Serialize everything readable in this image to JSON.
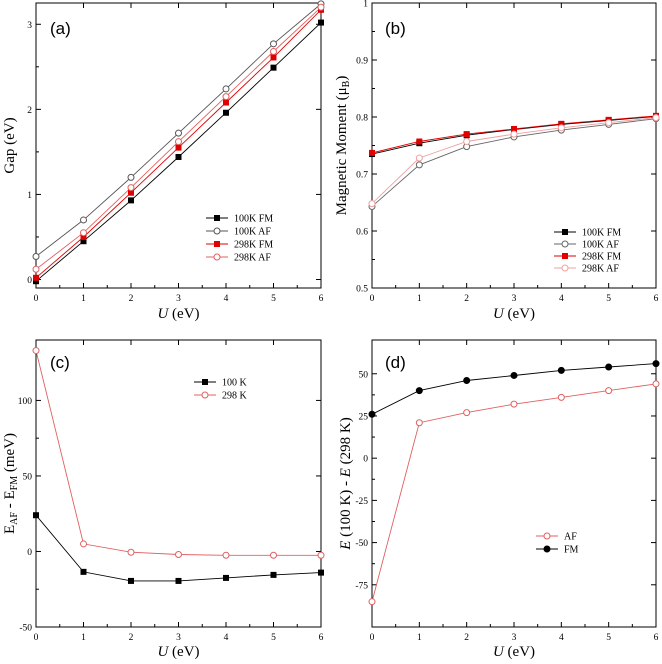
{
  "chart_data": [
    {
      "type": "line",
      "panel_label": "(a)",
      "xlabel_italic": "U",
      "xlabel_rest": " (eV)",
      "ylabel": "Gap (eV)",
      "ylabel_sub": "",
      "ylabel_suffix": "",
      "xlim": [
        0,
        6
      ],
      "ylim": [
        -0.1,
        3.25
      ],
      "xticks": [
        0,
        1,
        2,
        3,
        4,
        5,
        6
      ],
      "yticks": [
        0,
        1,
        2,
        3
      ],
      "x": [
        0,
        1,
        2,
        3,
        4,
        5,
        6
      ],
      "legend_position": "lower-right",
      "series": [
        {
          "name": "100K FM",
          "values": [
            -0.02,
            0.45,
            0.93,
            1.44,
            1.96,
            2.49,
            3.02
          ],
          "color": "#000000",
          "marker": "square-filled"
        },
        {
          "name": "100K AF",
          "values": [
            0.27,
            0.7,
            1.2,
            1.72,
            2.24,
            2.77,
            3.24
          ],
          "color": "#555555",
          "marker": "circle-open"
        },
        {
          "name": "298K FM",
          "values": [
            0.02,
            0.5,
            1.02,
            1.55,
            2.08,
            2.61,
            3.17
          ],
          "color": "#e00000",
          "marker": "square-filled"
        },
        {
          "name": "298K AF",
          "values": [
            0.12,
            0.55,
            1.08,
            1.62,
            2.15,
            2.68,
            3.2
          ],
          "color": "#e06060",
          "marker": "circle-open"
        }
      ]
    },
    {
      "type": "line",
      "panel_label": "(b)",
      "xlabel_italic": "U",
      "xlabel_rest": " (eV)",
      "ylabel": "Magnetic Moment (μ",
      "ylabel_sub": "B",
      "ylabel_suffix": ")",
      "xlim": [
        0,
        6
      ],
      "ylim": [
        0.5,
        1.0
      ],
      "xticks": [
        0,
        1,
        2,
        3,
        4,
        5,
        6
      ],
      "xtick_labels": [
        "0",
        "1",
        "2",
        "3",
        "4",
        "5",
        "6"
      ],
      "yticks": [
        0.5,
        0.6,
        0.7,
        0.8,
        0.9,
        1.0
      ],
      "ytick_labels": [
        "0.5",
        "0.6",
        "0.7",
        "0.8",
        "0.9",
        "1"
      ],
      "x": [
        0,
        1,
        2,
        3,
        4,
        5,
        6
      ],
      "legend_position": "lower-right",
      "series": [
        {
          "name": "100K FM",
          "values": [
            0.735,
            0.754,
            0.768,
            0.778,
            0.787,
            0.794,
            0.801
          ],
          "color": "#000000",
          "marker": "square-filled"
        },
        {
          "name": "100K AF",
          "values": [
            0.643,
            0.716,
            0.748,
            0.765,
            0.777,
            0.787,
            0.797
          ],
          "color": "#666666",
          "marker": "circle-open"
        },
        {
          "name": "298K FM",
          "values": [
            0.737,
            0.757,
            0.77,
            0.779,
            0.788,
            0.795,
            0.802
          ],
          "color": "#e00000",
          "marker": "square-filled"
        },
        {
          "name": "298K AF",
          "values": [
            0.648,
            0.728,
            0.757,
            0.77,
            0.781,
            0.79,
            0.799
          ],
          "color": "#f0a0a0",
          "marker": "circle-open"
        }
      ]
    },
    {
      "type": "line",
      "panel_label": "(c)",
      "xlabel_italic": "U",
      "xlabel_rest": " (eV)",
      "ylabel": "E",
      "ylabel_parts": [
        "E",
        "AF",
        " - E",
        "FM",
        " (meV)"
      ],
      "xlim": [
        0,
        6
      ],
      "ylim": [
        -50,
        140
      ],
      "xticks": [
        0,
        1,
        2,
        3,
        4,
        5,
        6
      ],
      "yticks": [
        -50,
        0,
        50,
        100
      ],
      "x": [
        0,
        1,
        2,
        3,
        4,
        5,
        6
      ],
      "legend_position": "upper-right",
      "series": [
        {
          "name": "100 K",
          "values": [
            24,
            -13.5,
            -19.5,
            -19.5,
            -17.5,
            -15.5,
            -14
          ],
          "color": "#000000",
          "marker": "square-filled"
        },
        {
          "name": "298 K",
          "values": [
            133,
            5,
            -0.5,
            -2,
            -2.5,
            -2.5,
            -2.5
          ],
          "color": "#e06060",
          "marker": "circle-open"
        }
      ]
    },
    {
      "type": "line",
      "panel_label": "(d)",
      "xlabel_italic": "U",
      "xlabel_rest": " (eV)",
      "ylabel_parts": [
        "E",
        " (100 K) - ",
        "E",
        " (298 K)"
      ],
      "xlim": [
        0,
        6
      ],
      "ylim": [
        -100,
        70
      ],
      "xticks": [
        0,
        1,
        2,
        3,
        4,
        5,
        6
      ],
      "yticks": [
        -75,
        -50,
        -25,
        0,
        25,
        50
      ],
      "x": [
        0,
        1,
        2,
        3,
        4,
        5,
        6
      ],
      "legend_position": "lower-right",
      "series": [
        {
          "name": "AF",
          "values": [
            -85,
            21,
            27,
            32,
            36,
            40,
            44
          ],
          "color": "#e06060",
          "marker": "circle-open"
        },
        {
          "name": "FM",
          "values": [
            26,
            40,
            46,
            49,
            52,
            54,
            56
          ],
          "color": "#000000",
          "marker": "circle-filled"
        }
      ]
    }
  ]
}
